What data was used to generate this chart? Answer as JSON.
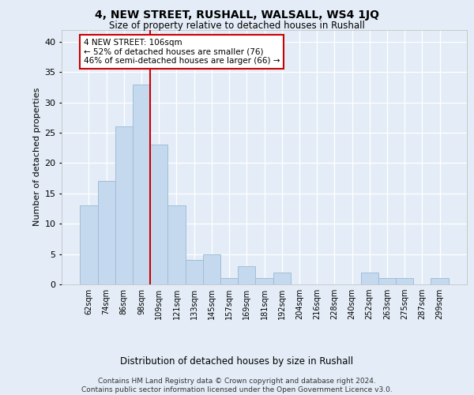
{
  "title1": "4, NEW STREET, RUSHALL, WALSALL, WS4 1JQ",
  "title2": "Size of property relative to detached houses in Rushall",
  "xlabel": "Distribution of detached houses by size in Rushall",
  "ylabel": "Number of detached properties",
  "categories": [
    "62sqm",
    "74sqm",
    "86sqm",
    "98sqm",
    "109sqm",
    "121sqm",
    "133sqm",
    "145sqm",
    "157sqm",
    "169sqm",
    "181sqm",
    "192sqm",
    "204sqm",
    "216sqm",
    "228sqm",
    "240sqm",
    "252sqm",
    "263sqm",
    "275sqm",
    "287sqm",
    "299sqm"
  ],
  "values": [
    13,
    17,
    26,
    33,
    23,
    13,
    4,
    5,
    1,
    3,
    1,
    2,
    0,
    0,
    0,
    0,
    2,
    1,
    1,
    0,
    1
  ],
  "bar_color": "#C5D9EE",
  "bar_edge_color": "#A0BDD8",
  "vline_color": "#CC0000",
  "vline_index": 4,
  "annotation_line1": "4 NEW STREET: 106sqm",
  "annotation_line2": "← 52% of detached houses are smaller (76)",
  "annotation_line3": "46% of semi-detached houses are larger (66) →",
  "annotation_box_color": "white",
  "annotation_box_edge": "#CC0000",
  "ylim": [
    0,
    42
  ],
  "yticks": [
    0,
    5,
    10,
    15,
    20,
    25,
    30,
    35,
    40
  ],
  "background_color": "#E4EDF7",
  "grid_color": "#FFFFFF",
  "footer": "Contains HM Land Registry data © Crown copyright and database right 2024.\nContains public sector information licensed under the Open Government Licence v3.0."
}
